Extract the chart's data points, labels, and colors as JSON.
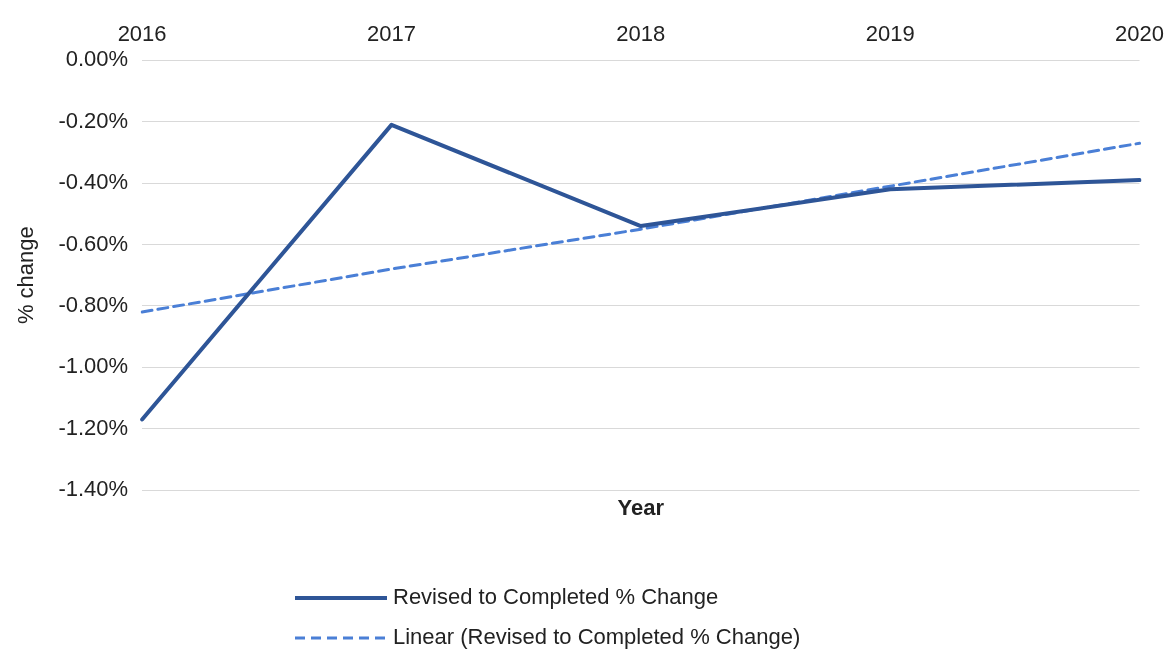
{
  "chart_data": {
    "type": "line",
    "xlabel": "Year",
    "ylabel": "% change",
    "categories": [
      "2016",
      "2017",
      "2018",
      "2019",
      "2020"
    ],
    "series": [
      {
        "name": "Revised to Completed % Change",
        "color": "#2e5597",
        "values": [
          -1.17,
          -0.21,
          -0.54,
          -0.42,
          -0.39
        ],
        "line_style": "solid"
      },
      {
        "name": "Linear (Revised to Completed % Change)",
        "color": "#4a7fd6",
        "values": [
          -0.82,
          -0.68,
          -0.55,
          -0.41,
          -0.27
        ],
        "line_style": "dashed"
      }
    ],
    "ylim": [
      -1.4,
      0
    ],
    "yticks": [
      {
        "value": 0,
        "label": "0.00%"
      },
      {
        "value": -0.2,
        "label": "-0.20%"
      },
      {
        "value": -0.4,
        "label": "-0.40%"
      },
      {
        "value": -0.6,
        "label": "-0.60%"
      },
      {
        "value": -0.8,
        "label": "-0.80%"
      },
      {
        "value": -1,
        "label": "-1.00%"
      },
      {
        "value": -1.2,
        "label": "-1.20%"
      },
      {
        "value": -1.4,
        "label": "-1.40%"
      }
    ],
    "grid": "y",
    "legend": "bottom",
    "marker": "none"
  }
}
